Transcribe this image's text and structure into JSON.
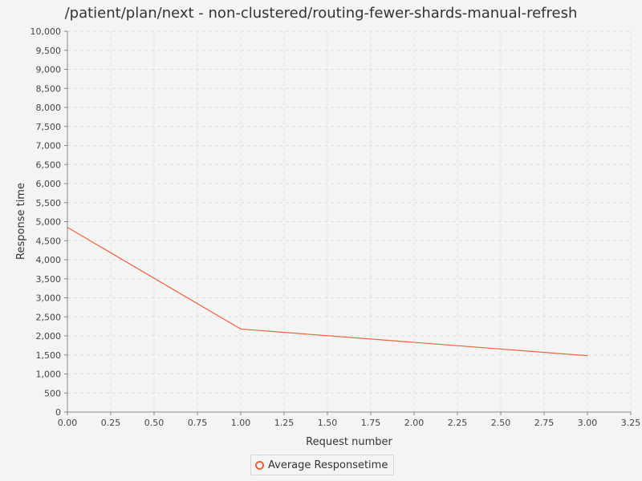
{
  "chart_data": {
    "type": "line",
    "title": "/patient/plan/next - non-clustered/routing-fewer-shards-manual-refresh",
    "xlabel": "Request number",
    "ylabel": "Response time",
    "xlim": [
      0,
      3.25
    ],
    "ylim": [
      0,
      10000
    ],
    "x_ticks": [
      "0.00",
      "0.25",
      "0.50",
      "0.75",
      "1.00",
      "1.25",
      "1.50",
      "1.75",
      "2.00",
      "2.25",
      "2.50",
      "2.75",
      "3.00",
      "3.25"
    ],
    "y_ticks": [
      "0",
      "500",
      "1,000",
      "1,500",
      "2,000",
      "2,500",
      "3,000",
      "3,500",
      "4,000",
      "4,500",
      "5,000",
      "5,500",
      "6,000",
      "6,500",
      "7,000",
      "7,500",
      "8,000",
      "8,500",
      "9,000",
      "9,500",
      "10,000"
    ],
    "grid": true,
    "legend_position": "bottom",
    "series": [
      {
        "name": "Average Responsetime",
        "color": "#e8643c",
        "x": [
          0,
          1,
          3
        ],
        "values": [
          4850,
          2180,
          1480
        ]
      }
    ]
  }
}
